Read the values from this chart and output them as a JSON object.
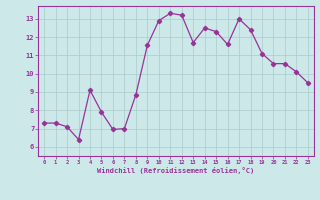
{
  "x": [
    0,
    1,
    2,
    3,
    4,
    5,
    6,
    7,
    8,
    9,
    10,
    11,
    12,
    13,
    14,
    15,
    16,
    17,
    18,
    19,
    20,
    21,
    22,
    23
  ],
  "y": [
    7.3,
    7.3,
    7.1,
    6.4,
    9.1,
    7.9,
    6.95,
    7.0,
    8.85,
    11.55,
    12.9,
    13.3,
    13.2,
    11.7,
    12.5,
    12.3,
    11.6,
    13.0,
    12.4,
    11.1,
    10.55,
    10.55,
    10.1,
    9.5
  ],
  "line_color": "#993399",
  "marker": "D",
  "marker_size": 2.2,
  "bg_color": "#cce8e8",
  "grid_color": "#aacccc",
  "xlabel": "Windchill (Refroidissement éolien,°C)",
  "xlim": [
    -0.5,
    23.5
  ],
  "ylim": [
    5.5,
    13.7
  ],
  "yticks": [
    6,
    7,
    8,
    9,
    10,
    11,
    12,
    13
  ],
  "xticks": [
    0,
    1,
    2,
    3,
    4,
    5,
    6,
    7,
    8,
    9,
    10,
    11,
    12,
    13,
    14,
    15,
    16,
    17,
    18,
    19,
    20,
    21,
    22,
    23
  ],
  "tick_color": "#993399",
  "label_color": "#993399",
  "spine_color": "#993399",
  "font_family": "monospace",
  "tick_fontsize": 4.0,
  "ytick_fontsize": 5.0,
  "xlabel_fontsize": 5.0
}
